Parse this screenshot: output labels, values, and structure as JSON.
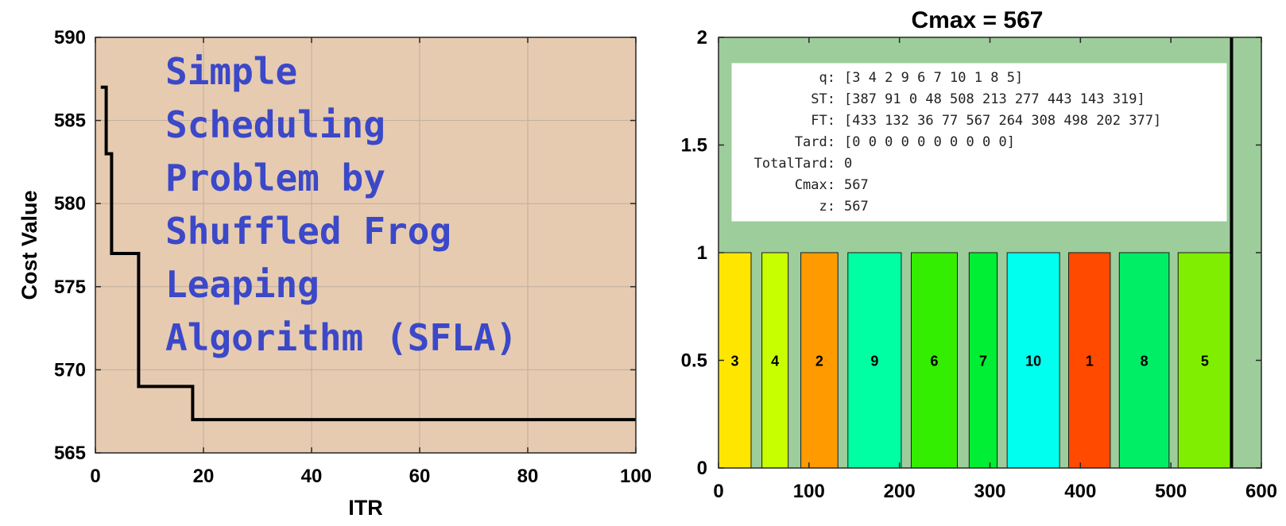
{
  "chart_data": [
    {
      "type": "line",
      "xlabel": "ITR",
      "ylabel": "Cost Value",
      "xlim": [
        0,
        100
      ],
      "ylim": [
        565,
        590
      ],
      "xticks": [
        0,
        20,
        40,
        60,
        80,
        100
      ],
      "yticks": [
        565,
        570,
        575,
        580,
        585,
        590
      ],
      "grid": true,
      "background": "#e6cbb1",
      "line_color": "#000000",
      "overlay_text": [
        "Simple",
        "Scheduling",
        "Problem by",
        "Shuffled Frog",
        "Leaping",
        "Algorithm (SFLA)"
      ],
      "series": [
        {
          "x": [
            1,
            2,
            3,
            4,
            5,
            6,
            7,
            8,
            9,
            10,
            11,
            12,
            13,
            14,
            15,
            16,
            17,
            18,
            19,
            20,
            30,
            40,
            50,
            60,
            70,
            80,
            90,
            100
          ],
          "values": [
            587,
            583,
            577,
            577,
            577,
            577,
            577,
            569,
            569,
            569,
            569,
            569,
            569,
            569,
            569,
            569,
            569,
            567,
            567,
            567,
            567,
            567,
            567,
            567,
            567,
            567,
            567,
            567
          ]
        }
      ]
    },
    {
      "type": "bar",
      "title": "Cmax = 567",
      "xlim": [
        0,
        600
      ],
      "ylim": [
        0,
        2
      ],
      "xticks": [
        0,
        100,
        200,
        300,
        400,
        500,
        600
      ],
      "yticks": [
        0,
        0.5,
        1,
        1.5,
        2
      ],
      "yticklabels": [
        "0",
        "0.5",
        "1",
        "1.5",
        "2"
      ],
      "background": "#9dcd9b",
      "cmax_line": 567,
      "bars": [
        {
          "label": "3",
          "start": 0,
          "finish": 36,
          "color": "#ffe600"
        },
        {
          "label": "4",
          "start": 48,
          "finish": 77,
          "color": "#c8ff00"
        },
        {
          "label": "2",
          "start": 91,
          "finish": 132,
          "color": "#ff9a00"
        },
        {
          "label": "9",
          "start": 143,
          "finish": 202,
          "color": "#00ffa2"
        },
        {
          "label": "6",
          "start": 213,
          "finish": 264,
          "color": "#33ee00"
        },
        {
          "label": "7",
          "start": 277,
          "finish": 308,
          "color": "#00ee33"
        },
        {
          "label": "10",
          "start": 319,
          "finish": 377,
          "color": "#00ffee"
        },
        {
          "label": "1",
          "start": 387,
          "finish": 433,
          "color": "#ff4a00"
        },
        {
          "label": "8",
          "start": 443,
          "finish": 498,
          "color": "#00ee66"
        },
        {
          "label": "5",
          "start": 508,
          "finish": 567,
          "color": "#80ee00"
        }
      ],
      "info_box": [
        {
          "key": "q:",
          "value": "[3 4 2 9 6 7 10 1 8 5]"
        },
        {
          "key": "ST:",
          "value": "[387 91 0 48 508 213 277 443 143 319]"
        },
        {
          "key": "FT:",
          "value": "[433 132 36 77 567 264 308 498 202 377]"
        },
        {
          "key": "Tard:",
          "value": "[0 0 0 0 0 0 0 0 0 0]"
        },
        {
          "key": "TotalTard:",
          "value": "0"
        },
        {
          "key": "Cmax:",
          "value": "567"
        },
        {
          "key": "z:",
          "value": "567"
        }
      ]
    }
  ]
}
